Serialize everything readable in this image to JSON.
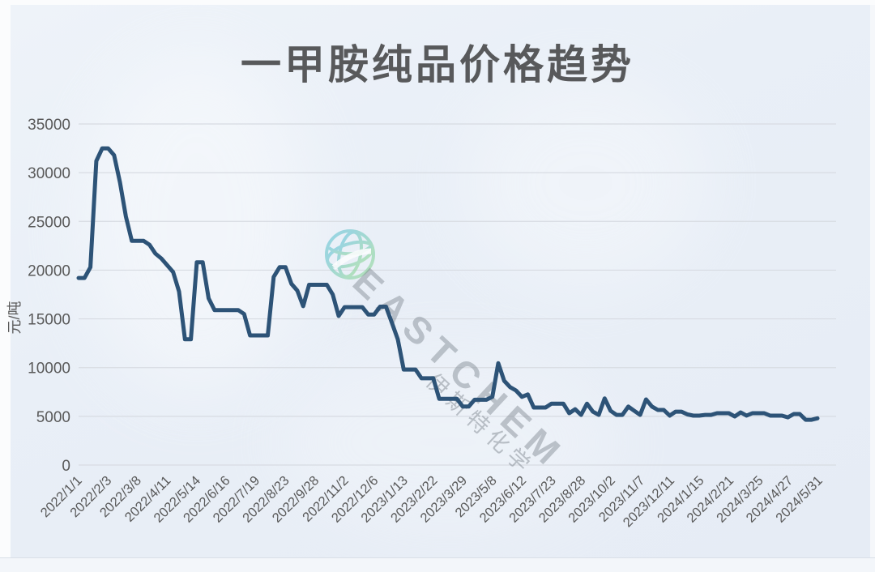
{
  "page": {
    "title": "一甲胺纯品价格趋势"
  },
  "watermark": {
    "logo_icon": "globe-icon",
    "brand": "EASTCHEM",
    "brand_cn": "伊斯特化学"
  },
  "colors": {
    "line": "#2d5377",
    "grid": "#d7dbe2",
    "title_text": "#58595b",
    "axis_text": "#595959",
    "panel_bg": "#e9eff7",
    "logo_teal": "#6fc5df",
    "logo_green": "#8ed9a0"
  },
  "chart_data": {
    "type": "line",
    "title": "一甲胺纯品价格趋势",
    "xlabel": "",
    "ylabel": "元/吨",
    "ylim": [
      0,
      35000
    ],
    "yticks": [
      0,
      5000,
      10000,
      15000,
      20000,
      25000,
      30000,
      35000
    ],
    "grid": true,
    "legend": false,
    "x_tick_labels": [
      "2022/1/1",
      "2022/2/3",
      "2022/3/8",
      "2022/4/11",
      "2022/5/14",
      "2022/6/16",
      "2022/7/19",
      "2022/8/23",
      "2022/9/28",
      "2022/11/2",
      "2022/12/6",
      "2023/1/13",
      "2023/2/22",
      "2023/3/29",
      "2023/5/8",
      "2023/6/12",
      "2023/7/23",
      "2023/8/28",
      "2023/10/2",
      "2023/11/7",
      "2023/12/11",
      "2024/1/15",
      "2024/2/21",
      "2024/3/25",
      "2024/4/27",
      "2024/5/31"
    ],
    "points_per_x_tick": 5,
    "series": [
      {
        "name": "一甲胺纯品价格",
        "values": [
          19200,
          19200,
          20300,
          31200,
          32500,
          32500,
          31800,
          29000,
          25500,
          23000,
          23000,
          23000,
          22600,
          21700,
          21200,
          20500,
          19800,
          17800,
          12900,
          12900,
          20800,
          20800,
          17100,
          15900,
          15900,
          15900,
          15900,
          15900,
          15500,
          13300,
          13300,
          13300,
          13300,
          19300,
          20300,
          20300,
          18600,
          17900,
          16300,
          18500,
          18500,
          18500,
          18500,
          17500,
          15300,
          16200,
          16200,
          16200,
          16200,
          15450,
          15450,
          16250,
          16250,
          14600,
          12900,
          9800,
          9800,
          9800,
          8900,
          8900,
          8900,
          6800,
          6800,
          6800,
          6800,
          6000,
          6000,
          6700,
          6700,
          6700,
          7000,
          10450,
          8650,
          8000,
          7650,
          7000,
          7250,
          5900,
          5900,
          5900,
          6300,
          6300,
          6300,
          5320,
          5730,
          5150,
          6300,
          5480,
          5150,
          6840,
          5570,
          5150,
          5150,
          6000,
          5570,
          5150,
          6730,
          6000,
          5650,
          5650,
          5070,
          5480,
          5480,
          5200,
          5070,
          5070,
          5150,
          5150,
          5320,
          5320,
          5320,
          4985,
          5400,
          5070,
          5320,
          5320,
          5320,
          5070,
          5070,
          5070,
          4900,
          5240,
          5240,
          4650,
          4650,
          4800
        ]
      }
    ]
  }
}
